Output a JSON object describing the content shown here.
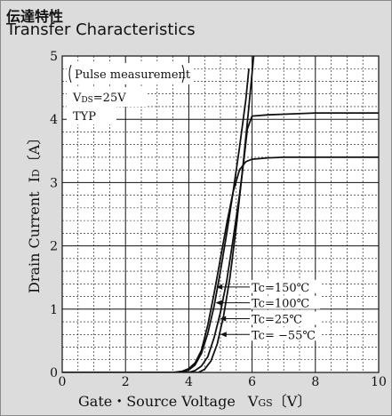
{
  "header": {
    "title_jp": "伝達特性",
    "title_en": "Transfer Characteristics"
  },
  "annotations": {
    "condition_box": "Pulse measurement",
    "vds_prefix": "V",
    "vds_sub": "DS",
    "vds_value": "=25V",
    "typ": "TYP"
  },
  "axes": {
    "ylabel_main": "Drain Current",
    "ylabel_symbol": "I",
    "ylabel_sub": "D",
    "ylabel_unit": "〔A〕",
    "xlabel_main": "Gate・Source Voltage",
    "xlabel_symbol": "V",
    "xlabel_sub": "GS",
    "xlabel_unit": "〔V〕"
  },
  "colors": {
    "grid": "#111111",
    "line": "#111111",
    "background": "#dcdcdc",
    "plot_background": "#ffffff"
  },
  "chart_data": {
    "type": "line",
    "title": "Transfer Characteristics",
    "xlabel": "Gate・Source Voltage VGS〔V〕",
    "ylabel": "Drain Current ID〔A〕",
    "xlim": [
      0,
      10
    ],
    "ylim": [
      0,
      5
    ],
    "xticks": [
      0,
      2,
      4,
      6,
      8,
      10
    ],
    "yticks": [
      0,
      1,
      2,
      3,
      4,
      5
    ],
    "grid": "major solid, minor dashed",
    "series": [
      {
        "name": "Tc=150℃",
        "label": "Tc=150℃",
        "x": [
          0.0,
          3.5,
          3.8,
          4.0,
          4.2,
          4.4,
          4.6,
          4.8,
          5.0,
          5.2,
          5.4,
          5.6,
          5.8,
          6.0,
          6.5,
          7.0,
          8.0,
          10.0
        ],
        "y": [
          0.0,
          0.0,
          0.02,
          0.06,
          0.15,
          0.35,
          0.75,
          1.25,
          1.8,
          2.35,
          2.85,
          3.2,
          3.33,
          3.37,
          3.39,
          3.4,
          3.4,
          3.4
        ]
      },
      {
        "name": "Tc=100℃",
        "label": "Tc=100℃",
        "x": [
          0.0,
          3.8,
          4.0,
          4.2,
          4.4,
          4.6,
          4.8,
          5.0,
          5.2,
          5.4,
          5.6,
          5.8,
          5.9
        ],
        "y": [
          0.0,
          0.0,
          0.04,
          0.12,
          0.3,
          0.62,
          1.05,
          1.6,
          2.2,
          2.85,
          3.55,
          4.3,
          4.8
        ]
      },
      {
        "name": "Tc=25℃",
        "label": "Tc=25℃",
        "x": [
          0.0,
          4.0,
          4.2,
          4.4,
          4.6,
          4.8,
          5.0,
          5.2,
          5.4,
          5.6,
          5.75,
          5.85,
          6.0,
          6.5,
          7.0,
          8.0,
          10.0
        ],
        "y": [
          0.0,
          0.0,
          0.03,
          0.1,
          0.25,
          0.55,
          0.95,
          1.45,
          2.1,
          2.8,
          3.4,
          3.85,
          4.05,
          4.07,
          4.08,
          4.1,
          4.1
        ]
      },
      {
        "name": "Tc= −55℃",
        "label": "Tc= −55℃",
        "x": [
          0.0,
          4.3,
          4.5,
          4.7,
          4.9,
          5.1,
          5.3,
          5.5,
          5.7,
          5.9,
          6.05
        ],
        "y": [
          0.0,
          0.0,
          0.05,
          0.18,
          0.45,
          0.9,
          1.5,
          2.3,
          3.2,
          4.2,
          5.0
        ]
      }
    ]
  }
}
